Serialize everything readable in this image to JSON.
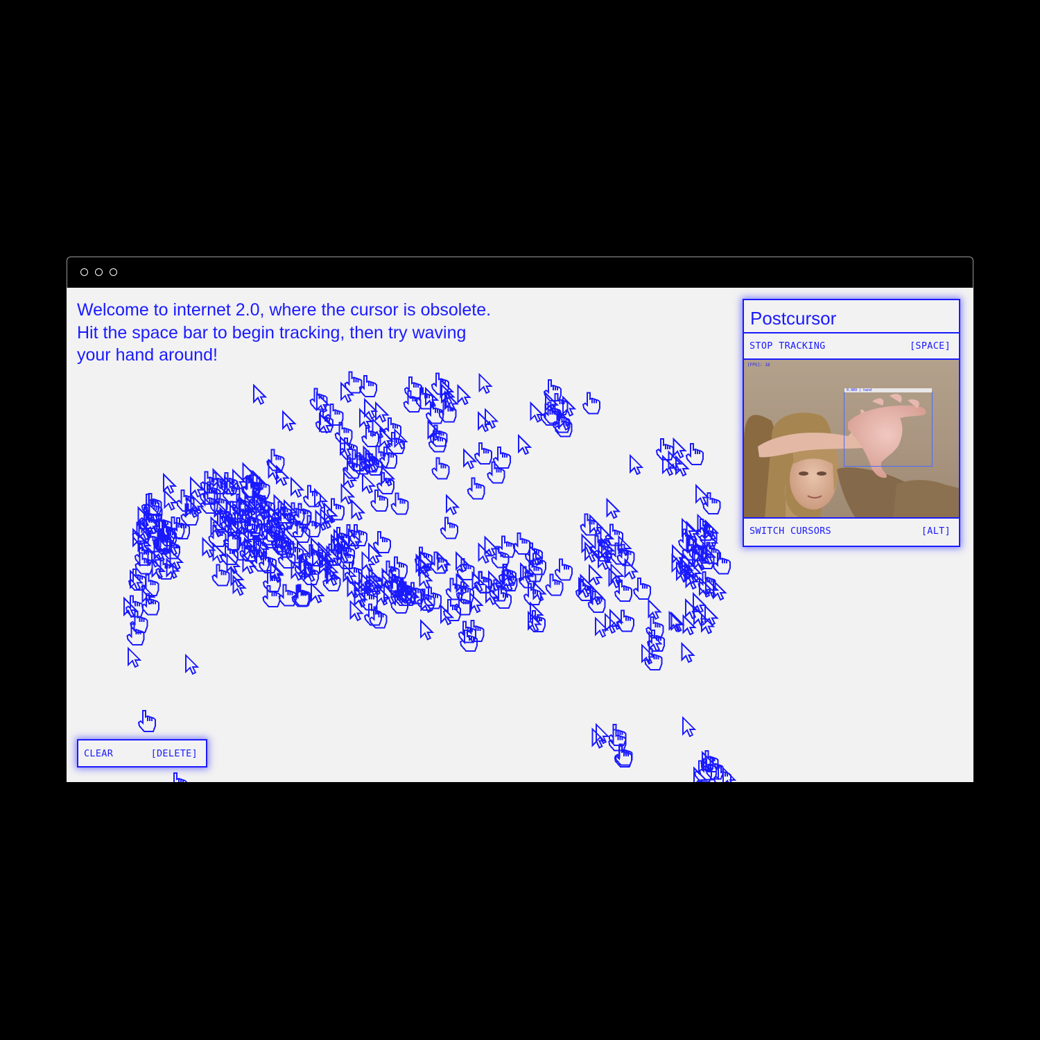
{
  "window": {
    "controls": [
      "close",
      "minimize",
      "maximize"
    ]
  },
  "intro": {
    "lines": [
      "Welcome to internet 2.0, where the cursor is obsolete.",
      "Hit the space bar to begin tracking, then try waving",
      "your hand around!"
    ]
  },
  "panel": {
    "title": "Postcursor",
    "stop_tracking": {
      "label": "STOP TRACKING",
      "key": "[SPACE]"
    },
    "switch_cursors": {
      "label": "SWITCH CURSORS",
      "key": "[ALT]"
    },
    "camera": {
      "fps_label": "[FPS]: 18",
      "detection_label": "0.989 | hand"
    }
  },
  "clear": {
    "label": "CLEAR",
    "key": "[DELETE]"
  },
  "colors": {
    "accent": "#1a1aff",
    "page_background": "#f2f2f2",
    "backdrop": "#000000"
  },
  "cursor_icons": [
    "arrow-cursor-icon",
    "hand-cursor-icon"
  ]
}
